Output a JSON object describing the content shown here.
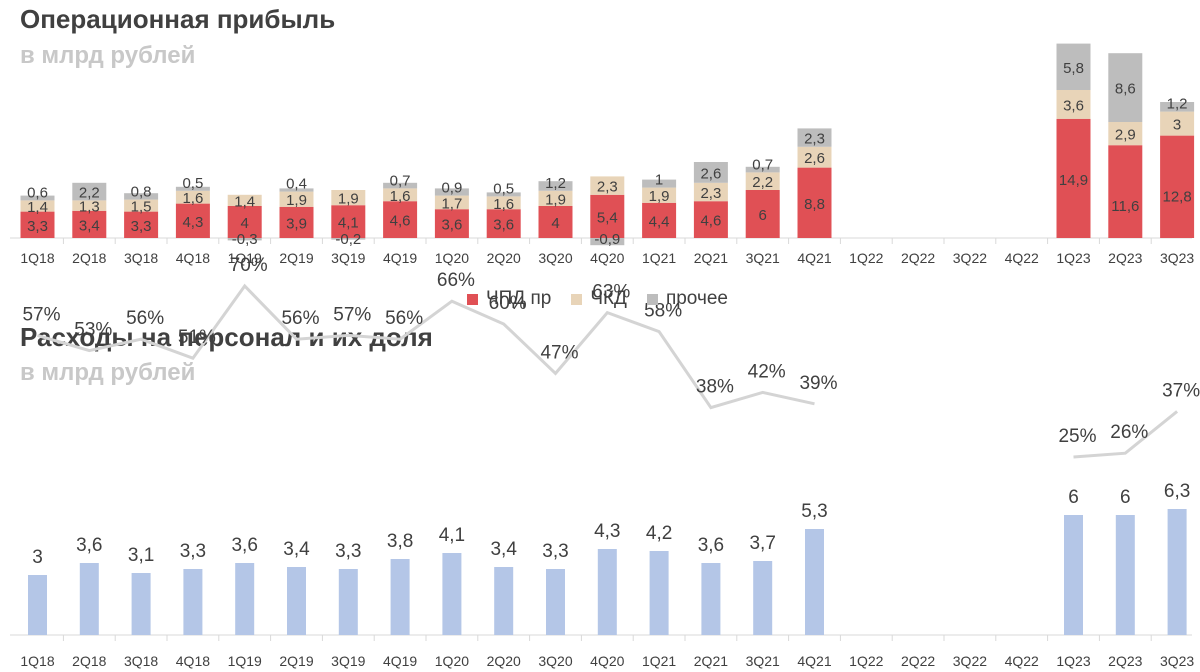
{
  "top_chart": {
    "title": "Операционная прибыль",
    "subtitle": "в млрд рублей"
  },
  "bottom_chart": {
    "title": "Расходы на персонал и их доля",
    "subtitle": "в млрд рублей"
  },
  "colors": {
    "chpd": "#e05055",
    "chkd": "#e8d4b8",
    "other": "#bdbdbd",
    "staff": "#b4c6e7",
    "share_line": "#d4d4d4",
    "text": "#404040"
  },
  "chart_data": [
    {
      "type": "bar",
      "stacked": true,
      "title": "Операционная прибыль",
      "subtitle": "в млрд рублей",
      "categories": [
        "1Q18",
        "2Q18",
        "3Q18",
        "4Q18",
        "1Q19",
        "2Q19",
        "3Q19",
        "4Q19",
        "1Q20",
        "2Q20",
        "3Q20",
        "4Q20",
        "1Q21",
        "2Q21",
        "3Q21",
        "4Q21",
        "1Q22",
        "2Q22",
        "3Q22",
        "4Q22",
        "1Q23",
        "2Q23",
        "3Q23"
      ],
      "legend_position": "bottom",
      "series": [
        {
          "name": "ЧПД пр",
          "values": [
            3.3,
            3.4,
            3.3,
            4.3,
            4,
            3.9,
            4.1,
            4.6,
            3.6,
            3.6,
            4,
            5.4,
            4.4,
            4.6,
            6,
            8.8,
            null,
            null,
            null,
            null,
            14.9,
            11.6,
            12.8
          ]
        },
        {
          "name": "ЧКД",
          "values": [
            1.4,
            1.3,
            1.5,
            1.6,
            1.4,
            1.9,
            1.9,
            1.6,
            1.7,
            1.6,
            1.9,
            2.3,
            1.9,
            2.3,
            2.2,
            2.6,
            null,
            null,
            null,
            null,
            3.6,
            2.9,
            3
          ]
        },
        {
          "name": "прочее",
          "values": [
            0.6,
            2.2,
            0.8,
            0.5,
            -0.3,
            0.4,
            -0.2,
            0.7,
            0.9,
            0.5,
            1.2,
            -0.9,
            1,
            2.6,
            0.7,
            2.3,
            null,
            null,
            null,
            null,
            5.8,
            8.6,
            1.2
          ]
        }
      ],
      "labels": {
        "ЧПД пр": [
          "3,3",
          "3,4",
          "3,3",
          "4,3",
          "4",
          "3,9",
          "4,1",
          "4,6",
          "3,6",
          "3,6",
          "4",
          "5,4",
          "4,4",
          "4,6",
          "6",
          "8,8",
          "",
          "",
          "",
          "",
          "14,9",
          "11,6",
          "12,8"
        ],
        "ЧКД": [
          "1,4",
          "1,3",
          "1,5",
          "1,6",
          "1,4",
          "1,9",
          "1,9",
          "1,6",
          "1,7",
          "1,6",
          "1,9",
          "2,3",
          "1,9",
          "2,3",
          "2,2",
          "2,6",
          "",
          "",
          "",
          "",
          "3,6",
          "2,9",
          "3"
        ],
        "прочее": [
          "0,6",
          "2,2",
          "0,8",
          "0,5",
          "-0,3",
          "0,4",
          "-0,2",
          "0,7",
          "0,9",
          "0,5",
          "1,2",
          "-0,9",
          "1",
          "2,6",
          "0,7",
          "2,3",
          "",
          "",
          "",
          "",
          "5,8",
          "8,6",
          "1,2"
        ]
      }
    },
    {
      "type": "bar",
      "title": "Расходы на персонал и их доля",
      "subtitle": "в млрд рублей",
      "categories": [
        "1Q18",
        "2Q18",
        "3Q18",
        "4Q18",
        "1Q19",
        "2Q19",
        "3Q19",
        "4Q19",
        "1Q20",
        "2Q20",
        "3Q20",
        "4Q20",
        "1Q21",
        "2Q21",
        "3Q21",
        "4Q21",
        "1Q22",
        "2Q22",
        "3Q22",
        "4Q22",
        "1Q23",
        "2Q23",
        "3Q23"
      ],
      "bar_values": [
        3,
        3.6,
        3.1,
        3.3,
        3.6,
        3.4,
        3.3,
        3.8,
        4.1,
        3.4,
        3.3,
        4.3,
        4.2,
        3.6,
        3.7,
        5.3,
        null,
        null,
        null,
        null,
        6,
        6,
        6.3
      ],
      "bar_labels": [
        "3",
        "3,6",
        "3,1",
        "3,3",
        "3,6",
        "3,4",
        "3,3",
        "3,8",
        "4,1",
        "3,4",
        "3,3",
        "4,3",
        "4,2",
        "3,6",
        "3,7",
        "5,3",
        "",
        "",
        "",
        "",
        "6",
        "6",
        "6,3"
      ],
      "line_values": [
        57,
        53,
        56,
        51,
        70,
        56,
        57,
        56,
        66,
        60,
        47,
        63,
        58,
        38,
        42,
        39,
        null,
        null,
        null,
        null,
        25,
        26,
        37
      ],
      "line_labels": [
        "57%",
        "53%",
        "56%",
        "51%",
        "70%",
        "56%",
        "57%",
        "56%",
        "66%",
        "60%",
        "47%",
        "63%",
        "58%",
        "38%",
        "42%",
        "39%",
        "",
        "",
        "",
        "",
        "25%",
        "26%",
        "37%"
      ]
    }
  ]
}
